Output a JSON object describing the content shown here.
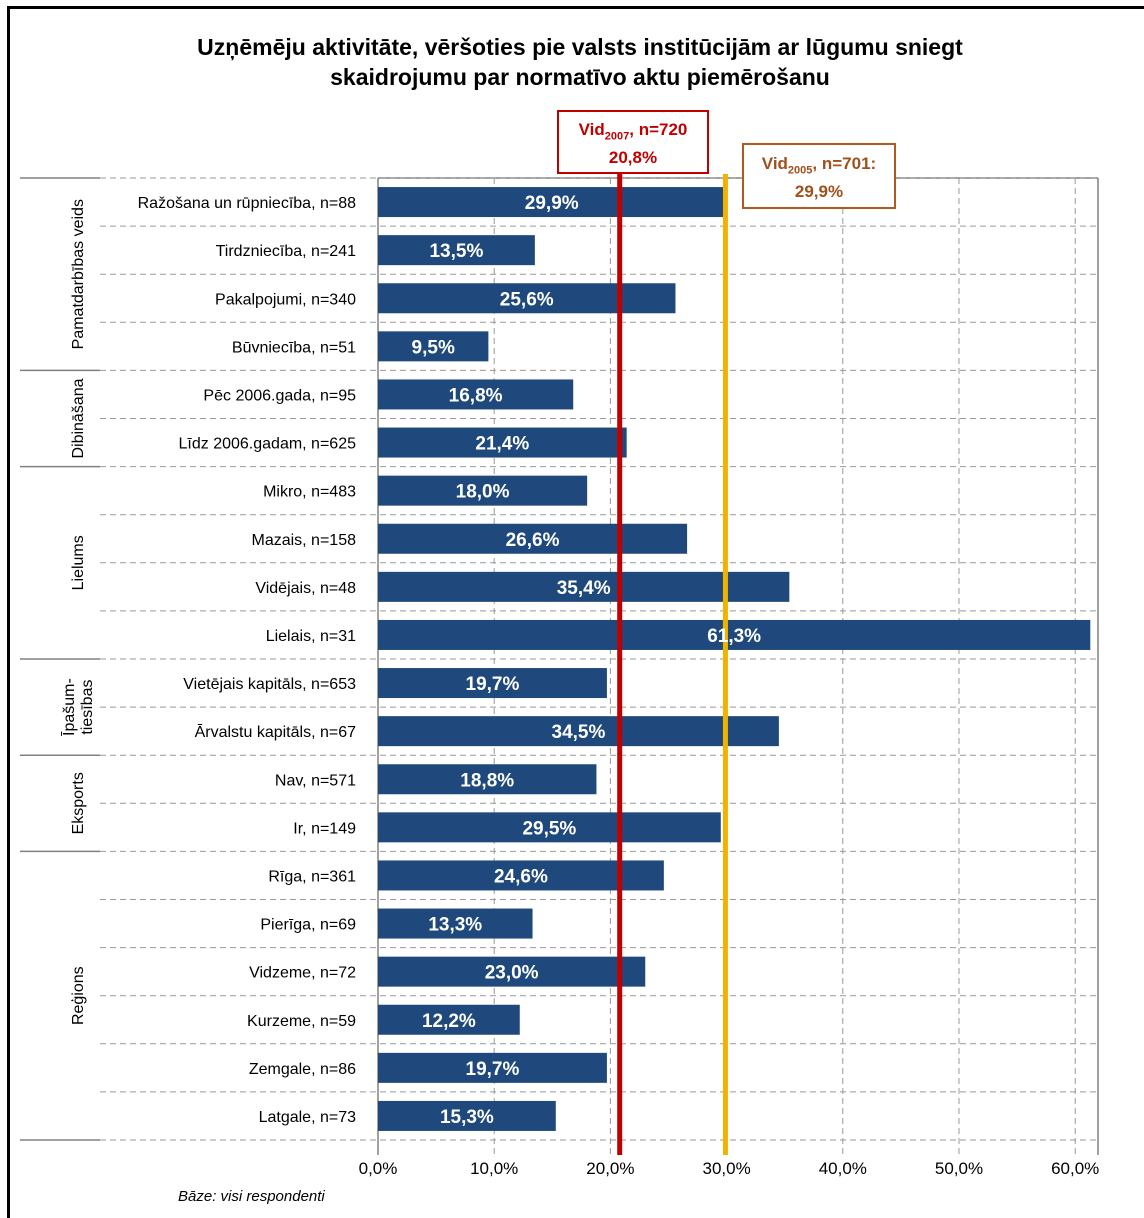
{
  "title_line1": "Uzņēmēju aktivitāte, vēršoties pie valsts institūcijām ar lūgumu sniegt",
  "title_line2": "skaidrojumu par normatīvo aktu piemērošanu",
  "base_note": "Bāze: visi respondenti",
  "average_2007": {
    "prefix": "Vid",
    "sub": "2007",
    "suffix": ", n=720",
    "value_label": "20,8%",
    "value": 20.8,
    "color": "#c00000"
  },
  "average_2005": {
    "prefix": "Vid",
    "sub": "2005",
    "suffix": ", n=701:",
    "value_label": "29,9%",
    "value": 29.9,
    "color": "#f0b400"
  },
  "colors": {
    "bar": "#1f497d",
    "bar_label": "#ffffff",
    "grid": "#9a9a9a"
  },
  "chart_data": {
    "type": "bar",
    "orientation": "horizontal",
    "xlim": [
      0,
      60
    ],
    "x_ticks": [
      "0,0%",
      "10,0%",
      "20,0%",
      "30,0%",
      "40,0%",
      "50,0%",
      "60,0%"
    ],
    "grid": true,
    "groups": [
      {
        "name": "Pamatdarbības veids",
        "lines": [
          "Pamatdarbības veids"
        ],
        "start": 0,
        "count": 4
      },
      {
        "name": "Dibināšana",
        "lines": [
          "Dibināšana"
        ],
        "start": 4,
        "count": 2
      },
      {
        "name": "Lielums",
        "lines": [
          "Lielums"
        ],
        "start": 6,
        "count": 4
      },
      {
        "name": "Īpašum-tiesības",
        "lines": [
          "Īpašum-",
          "tiesības"
        ],
        "start": 10,
        "count": 2
      },
      {
        "name": "Eksports",
        "lines": [
          "Eksports"
        ],
        "start": 12,
        "count": 2
      },
      {
        "name": "Reģions",
        "lines": [
          "Reģions"
        ],
        "start": 14,
        "count": 6
      }
    ],
    "categories": [
      "Ražošana un rūpniecība,  n=88",
      "Tirdzniecība, n=241",
      "Pakalpojumi, n=340",
      "Būvniecība, n=51",
      "Pēc 2006.gada,  n=95",
      "Līdz 2006.gadam, n=625",
      "Mikro, n=483",
      "Mazais, n=158",
      "Vidējais, n=48",
      "Lielais, n=31",
      "Vietējais kapitāls, n=653",
      "Ārvalstu kapitāls, n=67",
      "Nav, n=571",
      "Ir, n=149",
      "Rīga, n=361",
      "Pierīga, n=69",
      "Vidzeme, n=72",
      "Kurzeme, n=59",
      "Zemgale, n=86",
      "Latgale, n=73"
    ],
    "values": [
      29.9,
      13.5,
      25.6,
      9.5,
      16.8,
      21.4,
      18.0,
      26.6,
      35.4,
      61.3,
      19.7,
      34.5,
      18.8,
      29.5,
      24.6,
      13.3,
      23.0,
      12.2,
      19.7,
      15.3
    ],
    "value_labels": [
      "29,9%",
      "13,5%",
      "25,6%",
      "9,5%",
      "16,8%",
      "21,4%",
      "18,0%",
      "26,6%",
      "35,4%",
      "61,3%",
      "19,7%",
      "34,5%",
      "18,8%",
      "29,5%",
      "24,6%",
      "13,3%",
      "23,0%",
      "12,2%",
      "19,7%",
      "15,3%"
    ]
  }
}
